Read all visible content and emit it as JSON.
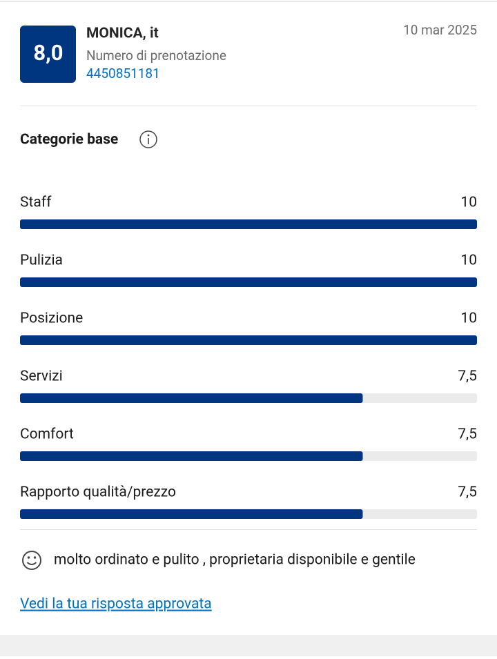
{
  "review": {
    "score": "8,0",
    "guest": "MONICA, it",
    "booking_label": "Numero di prenotazione",
    "booking_number": "4450851181",
    "date": "10 mar 2025",
    "section_title": "Categorie base",
    "xlim": [
      0,
      10
    ],
    "categories": [
      {
        "name": "Staff",
        "value": 10,
        "label": "10"
      },
      {
        "name": "Pulizia",
        "value": 10,
        "label": "10"
      },
      {
        "name": "Posizione",
        "value": 10,
        "label": "10"
      },
      {
        "name": "Servizi",
        "value": 7.5,
        "label": "7,5"
      },
      {
        "name": "Comfort",
        "value": 7.5,
        "label": "7,5"
      },
      {
        "name": "Rapporto qualità/prezzo",
        "value": 7.5,
        "label": "7,5"
      }
    ],
    "comment": "molto ordinato e pulito , proprietaria disponibile e gentile",
    "link": "Vedi la tua risposta approvata"
  }
}
